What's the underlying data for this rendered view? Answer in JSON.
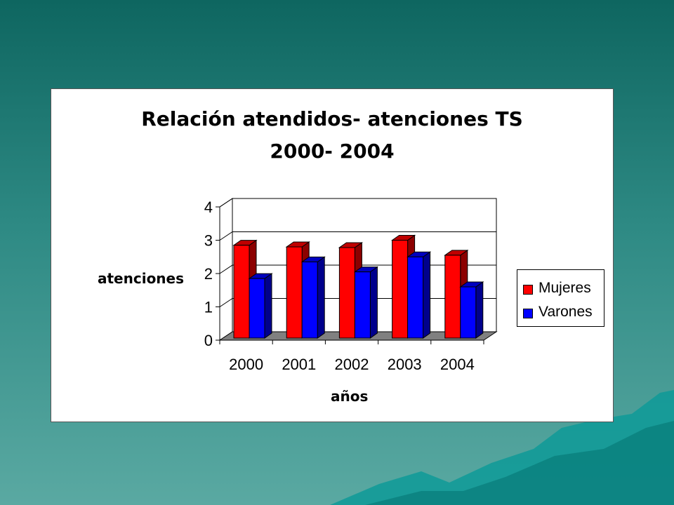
{
  "chart_data": {
    "type": "bar",
    "title": "Relación atendidos- atenciones TS",
    "subtitle": "2000- 2004",
    "xlabel": "años",
    "ylabel": "atenciones",
    "categories": [
      "2000",
      "2001",
      "2002",
      "2003",
      "2004"
    ],
    "series": [
      {
        "name": "Mujeres",
        "values": [
          2.85,
          2.8,
          2.78,
          3.0,
          2.55
        ],
        "color": "#ff0000"
      },
      {
        "name": "Varones",
        "values": [
          1.85,
          2.35,
          2.05,
          2.5,
          1.6
        ],
        "color": "#0000ff"
      }
    ],
    "ylim": [
      0,
      4
    ],
    "yticks": [
      "0",
      "1",
      "2",
      "3",
      "4"
    ],
    "grid": true,
    "legend_position": "right",
    "style": "3d-column"
  }
}
